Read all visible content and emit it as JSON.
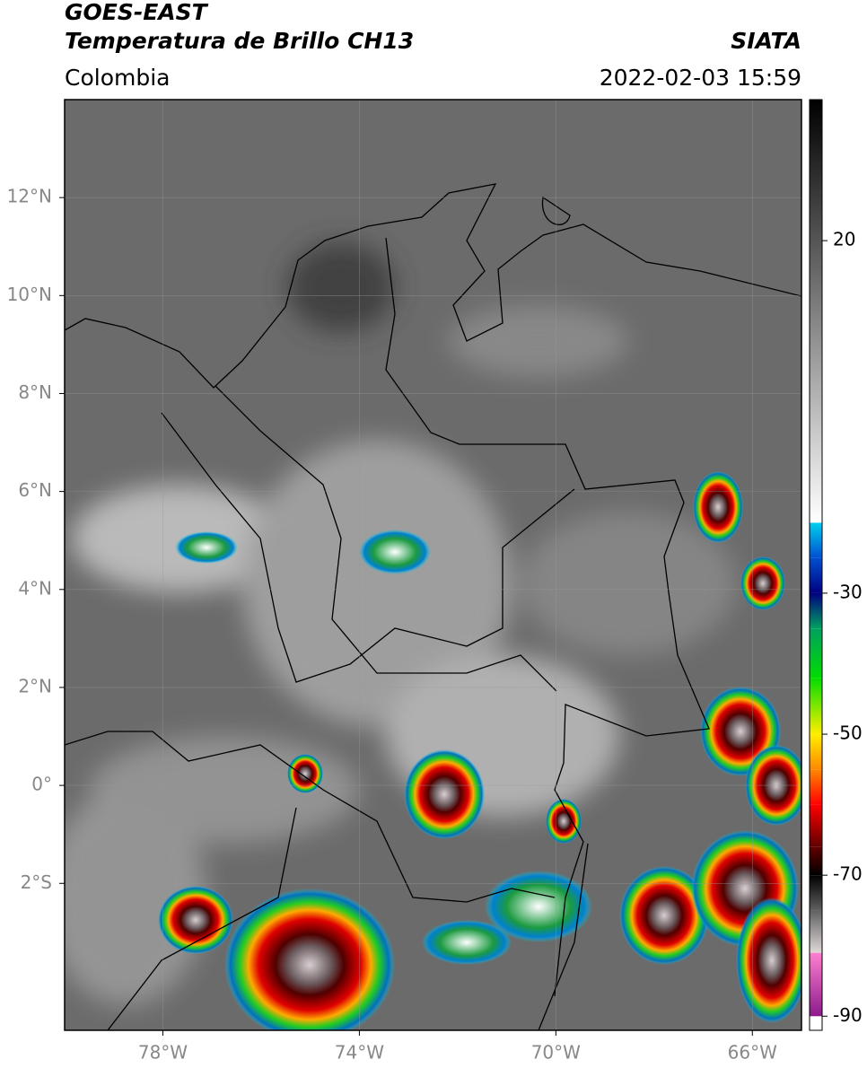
{
  "header": {
    "title": "GOES-EAST",
    "subtitle": "Temperatura de Brillo CH13",
    "region": "Colombia",
    "source": "SIATA",
    "timestamp": "2022-02-03 15:59"
  },
  "map": {
    "xlim": [
      -80,
      -65
    ],
    "ylim": [
      -5,
      14
    ],
    "xticks": [
      {
        "value": -78,
        "label": "78°W"
      },
      {
        "value": -74,
        "label": "74°W"
      },
      {
        "value": -70,
        "label": "70°W"
      },
      {
        "value": -66,
        "label": "66°W"
      }
    ],
    "yticks": [
      {
        "value": -2,
        "label": "2°S"
      },
      {
        "value": 0,
        "label": "0°"
      },
      {
        "value": 2,
        "label": "2°N"
      },
      {
        "value": 4,
        "label": "4°N"
      },
      {
        "value": 6,
        "label": "6°N"
      },
      {
        "value": 8,
        "label": "8°N"
      },
      {
        "value": 10,
        "label": "10°N"
      },
      {
        "value": 12,
        "label": "12°N"
      }
    ],
    "grid": true
  },
  "colorbar": {
    "lim": [
      -92,
      40
    ],
    "ticks": [
      20,
      -30,
      -50,
      -70,
      -90
    ],
    "stops": [
      {
        "value": -92,
        "color": "#ffffff"
      },
      {
        "value": -90,
        "color": "#ffffff"
      },
      {
        "value": -90,
        "color": "#8b1a8b"
      },
      {
        "value": -81,
        "color": "#ff7fd0"
      },
      {
        "value": -81,
        "color": "#e0d8d8"
      },
      {
        "value": -75,
        "color": "#606060"
      },
      {
        "value": -70,
        "color": "#000000"
      },
      {
        "value": -66,
        "color": "#600000"
      },
      {
        "value": -60,
        "color": "#ff0000"
      },
      {
        "value": -55,
        "color": "#ff8800"
      },
      {
        "value": -50,
        "color": "#ffee00"
      },
      {
        "value": -42,
        "color": "#00dd00"
      },
      {
        "value": -35,
        "color": "#00a060"
      },
      {
        "value": -30,
        "color": "#000080"
      },
      {
        "value": -25,
        "color": "#0050d0"
      },
      {
        "value": -20,
        "color": "#00d0f0"
      },
      {
        "value": -20,
        "color": "#ffffff"
      },
      {
        "value": 40,
        "color": "#000000"
      }
    ]
  }
}
